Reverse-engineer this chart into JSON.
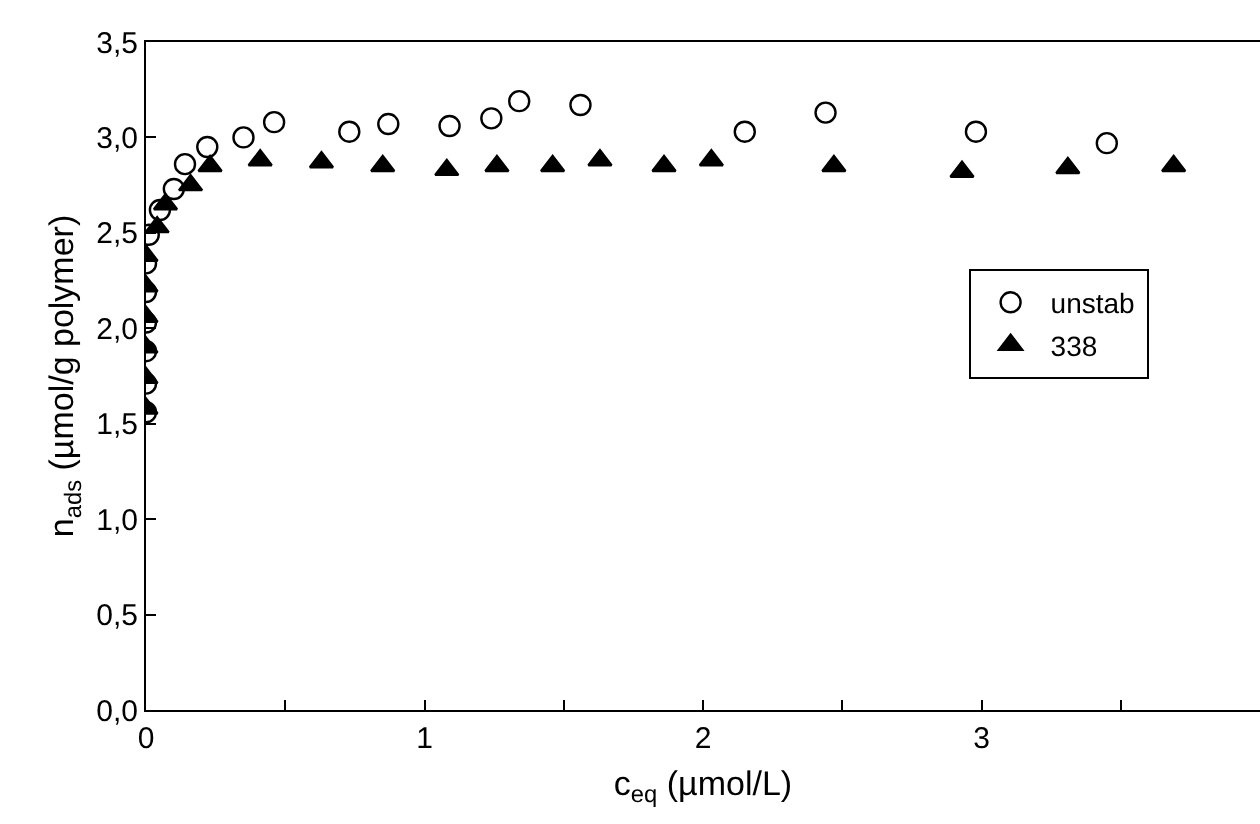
{
  "chart_data": {
    "type": "scatter",
    "xlabel": "c$_{eq}$ (µmol/L)",
    "ylabel": "n$_{ads}$ (µmol/g polymer)",
    "xlim": [
      0,
      4
    ],
    "xticks": [
      0,
      {
        "value": 0.5,
        "label": null
      },
      1,
      {
        "value": 1.5,
        "label": null
      },
      2,
      {
        "value": 2.5,
        "label": null
      },
      3,
      {
        "value": 3.5,
        "label": null
      }
    ],
    "ylim": [
      0,
      3.5
    ],
    "yticks": [
      {
        "value": 0,
        "label": "0,0"
      },
      {
        "value": 0.5,
        "label": "0,5"
      },
      {
        "value": 1,
        "label": "1,0"
      },
      {
        "value": 1.5,
        "label": "1,5"
      },
      {
        "value": 2,
        "label": "2,0"
      },
      {
        "value": 2.5,
        "label": "2,5"
      },
      {
        "value": 3,
        "label": "3,0"
      },
      {
        "value": 3.5,
        "label": "3,5"
      }
    ],
    "grid": false,
    "legend": "right",
    "series": [
      {
        "name": "unstab",
        "color": "#000000",
        "marker": "circle",
        "x": [
          0,
          0,
          0,
          0,
          0,
          0,
          0.01,
          0.05,
          0.1,
          0.14,
          0.22,
          0.35,
          0.46,
          0.73,
          0.87,
          1.09,
          1.24,
          1.34,
          1.56,
          2.15,
          2.44,
          2.98,
          3.45
        ],
        "values": [
          1.56,
          1.71,
          1.88,
          2.03,
          2.19,
          2.34,
          2.49,
          2.62,
          2.73,
          2.86,
          2.95,
          3.0,
          3.08,
          3.03,
          3.07,
          3.06,
          3.1,
          3.19,
          3.17,
          3.03,
          3.13,
          3.03,
          2.97
        ]
      },
      {
        "name": "338",
        "color": "#000000",
        "marker": "triangle",
        "x": [
          0,
          0,
          0,
          0,
          0,
          0,
          0.04,
          0.07,
          0.16,
          0.23,
          0.41,
          0.63,
          0.85,
          1.08,
          1.26,
          1.46,
          1.63,
          1.86,
          2.03,
          2.47,
          2.93,
          3.31,
          3.69
        ],
        "values": [
          1.58,
          1.74,
          1.9,
          2.06,
          2.22,
          2.38,
          2.53,
          2.65,
          2.75,
          2.85,
          2.88,
          2.87,
          2.85,
          2.83,
          2.85,
          2.85,
          2.88,
          2.85,
          2.88,
          2.85,
          2.82,
          2.84,
          2.85
        ]
      }
    ]
  }
}
